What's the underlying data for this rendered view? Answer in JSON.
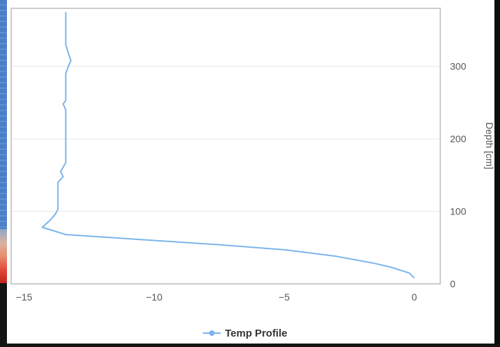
{
  "chart_data": {
    "type": "line",
    "title": "",
    "xlabel": "",
    "ylabel": "Depth [cm]",
    "xlim": [
      -15.5,
      1
    ],
    "ylim": [
      0,
      380
    ],
    "x_ticks": [
      -15,
      -10,
      -5,
      0
    ],
    "y_ticks": [
      0,
      100,
      200,
      300
    ],
    "x_tick_labels": [
      "−15",
      "−10",
      "−5",
      "0"
    ],
    "y_tick_labels": [
      "0",
      "100",
      "200",
      "300"
    ],
    "grid": true,
    "legend": "bottom-center",
    "series": [
      {
        "name": "Temp Profile",
        "color": "#7cb5ec",
        "points": [
          [
            0.0,
            8
          ],
          [
            -0.2,
            15
          ],
          [
            -0.9,
            23
          ],
          [
            -1.5,
            28
          ],
          [
            -3.0,
            38
          ],
          [
            -5.0,
            47
          ],
          [
            -7.5,
            54
          ],
          [
            -10.5,
            61
          ],
          [
            -13.4,
            68
          ],
          [
            -14.3,
            78
          ],
          [
            -14.0,
            88
          ],
          [
            -13.8,
            96
          ],
          [
            -13.7,
            103
          ],
          [
            -13.7,
            110
          ],
          [
            -13.7,
            140
          ],
          [
            -13.5,
            148
          ],
          [
            -13.6,
            155
          ],
          [
            -13.4,
            167
          ],
          [
            -13.4,
            240
          ],
          [
            -13.5,
            248
          ],
          [
            -13.4,
            253
          ],
          [
            -13.4,
            290
          ],
          [
            -13.3,
            300
          ],
          [
            -13.2,
            308
          ],
          [
            -13.3,
            318
          ],
          [
            -13.4,
            330
          ],
          [
            -13.4,
            375
          ]
        ]
      }
    ]
  },
  "legend": {
    "label": "Temp Profile",
    "color": "#7cb5ec"
  }
}
